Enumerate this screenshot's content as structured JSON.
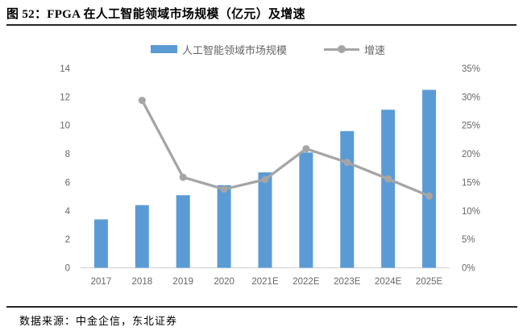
{
  "header": {
    "title": "图 52：FPGA 在人工智能领域市场规模（亿元）及增速"
  },
  "footer": {
    "source": "数据来源：中金企信，东北证券"
  },
  "colors": {
    "bar_fill": "#5B9BD5",
    "line_stroke": "#A5A5A5",
    "axis_text": "#666666",
    "rule": "#262626",
    "baseline": "#D9D9D9"
  },
  "chart_data": {
    "type": "bar",
    "subtype": "combo-bar-line-dual-axis",
    "title": "FPGA 在人工智能领域市场规模（亿元）及增速",
    "categories": [
      "2017",
      "2018",
      "2019",
      "2020",
      "2021E",
      "2022E",
      "2023E",
      "2024E",
      "2025E"
    ],
    "series": [
      {
        "name": "人工智能领域市场规模",
        "type": "bar",
        "axis": "left",
        "unit": "亿元",
        "values": [
          3.4,
          4.4,
          5.1,
          5.8,
          6.7,
          8.1,
          9.6,
          11.1,
          12.5
        ]
      },
      {
        "name": "增速",
        "type": "line",
        "axis": "right",
        "unit": "%",
        "values": [
          null,
          29.4,
          15.9,
          13.8,
          15.5,
          20.9,
          18.5,
          15.6,
          12.6
        ]
      }
    ],
    "left_axis": {
      "min": 0,
      "max": 14,
      "step": 2,
      "tick_labels": [
        "0",
        "2",
        "4",
        "6",
        "8",
        "10",
        "12",
        "14"
      ]
    },
    "right_axis": {
      "min": 0,
      "max": 35,
      "step": 5,
      "tick_labels": [
        "0%",
        "5%",
        "10%",
        "15%",
        "20%",
        "25%",
        "30%",
        "35%"
      ]
    },
    "grid": false,
    "legend_position": "top"
  }
}
